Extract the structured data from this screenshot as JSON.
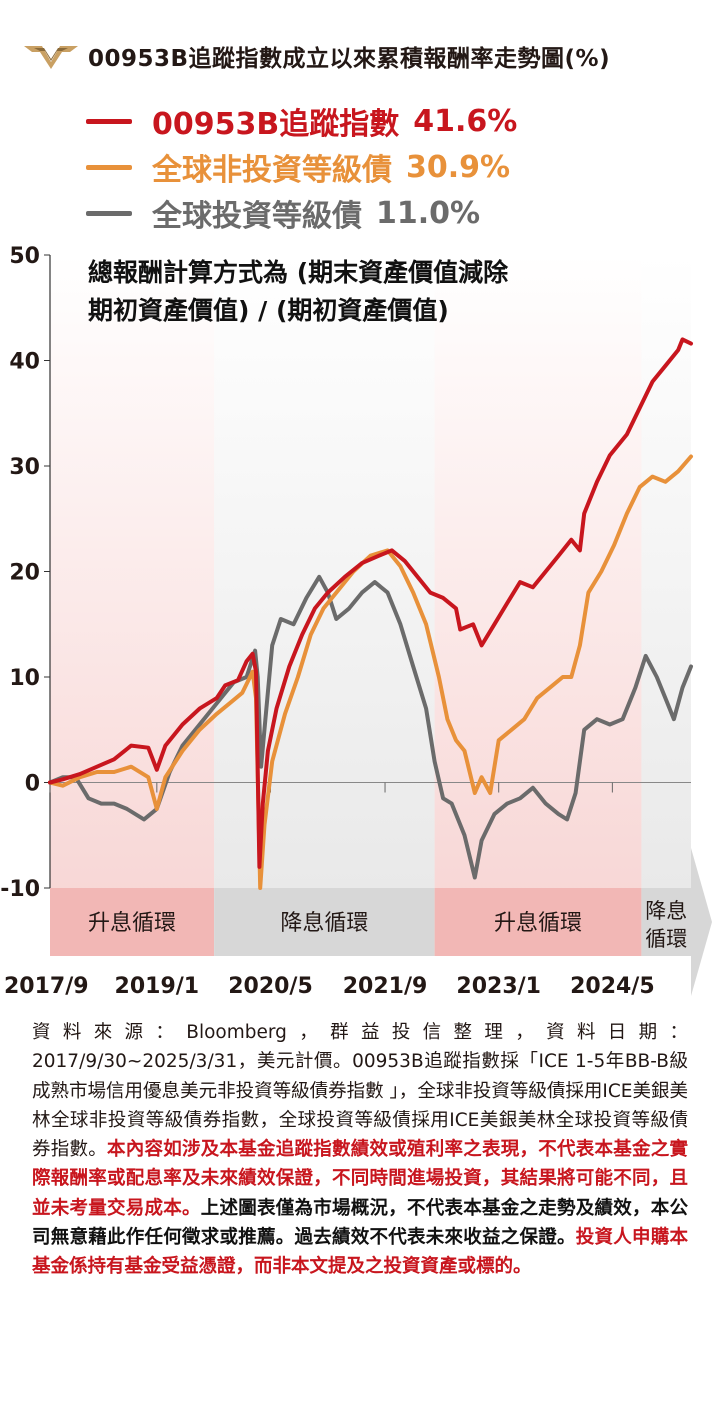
{
  "header": {
    "title": "00953B追蹤指數成立以來累積報酬率走勢圖(%)",
    "logo_colors": [
      "#c9a063",
      "#8a6a3a"
    ]
  },
  "legend": [
    {
      "name": "00953B追蹤指數",
      "value": "41.6%",
      "color": "#c8161e"
    },
    {
      "name": "全球非投資等級債",
      "value": "30.9%",
      "color": "#e8913a"
    },
    {
      "name": "全球投資等級債",
      "value": "11.0%",
      "color": "#6b6b6b"
    }
  ],
  "note": {
    "line1": "總報酬計算方式為 (期末資產價值減除",
    "line2": "期初資產價值) / (期初資產價值)"
  },
  "chart_data": {
    "type": "line",
    "x_range": [
      2017.75,
      2025.25
    ],
    "x_tick_labels": [
      "2017/9",
      "2019/1",
      "2020/5",
      "2021/9",
      "2023/1",
      "2024/5"
    ],
    "x_tick_positions": [
      2017.75,
      2019.0,
      2020.33,
      2021.67,
      2023.0,
      2024.33
    ],
    "y_range": [
      -10,
      50
    ],
    "y_ticks": [
      -10,
      0,
      10,
      20,
      30,
      40,
      50
    ],
    "zero_line": true,
    "regions": [
      {
        "label": "升息循環",
        "from": 2017.75,
        "to": 2019.67,
        "color": "#f2b7b5"
      },
      {
        "label": "降息循環",
        "from": 2019.67,
        "to": 2022.25,
        "color": "#d7d7d7"
      },
      {
        "label": "升息循環",
        "from": 2022.25,
        "to": 2024.67,
        "color": "#f2b7b5"
      },
      {
        "label": "降息循環",
        "from": 2024.67,
        "to": 2025.25,
        "color": "#d7d7d7"
      }
    ],
    "series": [
      {
        "name": "00953B追蹤指數",
        "color": "#c8161e",
        "points": [
          [
            2017.75,
            0
          ],
          [
            2017.9,
            0.3
          ],
          [
            2018.1,
            0.8
          ],
          [
            2018.3,
            1.5
          ],
          [
            2018.5,
            2.2
          ],
          [
            2018.7,
            3.5
          ],
          [
            2018.9,
            3.3
          ],
          [
            2019.0,
            1.2
          ],
          [
            2019.1,
            3.5
          ],
          [
            2019.3,
            5.5
          ],
          [
            2019.5,
            7.0
          ],
          [
            2019.7,
            8.0
          ],
          [
            2019.8,
            9.2
          ],
          [
            2019.95,
            9.7
          ],
          [
            2020.05,
            11.5
          ],
          [
            2020.12,
            12.2
          ],
          [
            2020.16,
            10.5
          ],
          [
            2020.2,
            -8.0
          ],
          [
            2020.24,
            -2.0
          ],
          [
            2020.3,
            3.0
          ],
          [
            2020.4,
            7.0
          ],
          [
            2020.55,
            11.0
          ],
          [
            2020.7,
            14.0
          ],
          [
            2020.85,
            16.5
          ],
          [
            2021.0,
            18.0
          ],
          [
            2021.2,
            19.5
          ],
          [
            2021.4,
            20.8
          ],
          [
            2021.6,
            21.5
          ],
          [
            2021.75,
            22.0
          ],
          [
            2021.9,
            21.0
          ],
          [
            2022.05,
            19.5
          ],
          [
            2022.2,
            18.0
          ],
          [
            2022.35,
            17.5
          ],
          [
            2022.5,
            16.5
          ],
          [
            2022.55,
            14.5
          ],
          [
            2022.7,
            15.0
          ],
          [
            2022.8,
            13.0
          ],
          [
            2022.95,
            15.0
          ],
          [
            2023.1,
            17.0
          ],
          [
            2023.25,
            19.0
          ],
          [
            2023.4,
            18.5
          ],
          [
            2023.55,
            20.0
          ],
          [
            2023.7,
            21.5
          ],
          [
            2023.85,
            23.0
          ],
          [
            2023.95,
            22.0
          ],
          [
            2024.0,
            25.5
          ],
          [
            2024.15,
            28.5
          ],
          [
            2024.3,
            31.0
          ],
          [
            2024.5,
            33.0
          ],
          [
            2024.65,
            35.5
          ],
          [
            2024.8,
            38.0
          ],
          [
            2024.95,
            39.5
          ],
          [
            2025.1,
            41.0
          ],
          [
            2025.15,
            42.0
          ],
          [
            2025.25,
            41.6
          ]
        ]
      },
      {
        "name": "全球非投資等級債",
        "color": "#e8913a",
        "points": [
          [
            2017.75,
            0
          ],
          [
            2017.9,
            -0.3
          ],
          [
            2018.1,
            0.5
          ],
          [
            2018.3,
            1.0
          ],
          [
            2018.5,
            1.0
          ],
          [
            2018.7,
            1.5
          ],
          [
            2018.9,
            0.5
          ],
          [
            2019.0,
            -2.5
          ],
          [
            2019.1,
            0.5
          ],
          [
            2019.3,
            3.0
          ],
          [
            2019.5,
            5.0
          ],
          [
            2019.7,
            6.5
          ],
          [
            2019.85,
            7.5
          ],
          [
            2020.0,
            8.5
          ],
          [
            2020.12,
            10.5
          ],
          [
            2020.16,
            8.0
          ],
          [
            2020.21,
            -10.0
          ],
          [
            2020.26,
            -4.0
          ],
          [
            2020.35,
            2.0
          ],
          [
            2020.5,
            6.5
          ],
          [
            2020.65,
            10.0
          ],
          [
            2020.8,
            14.0
          ],
          [
            2020.95,
            16.5
          ],
          [
            2021.1,
            18.0
          ],
          [
            2021.3,
            20.0
          ],
          [
            2021.5,
            21.5
          ],
          [
            2021.7,
            22.0
          ],
          [
            2021.85,
            20.5
          ],
          [
            2022.0,
            18.0
          ],
          [
            2022.15,
            15.0
          ],
          [
            2022.3,
            10.0
          ],
          [
            2022.4,
            6.0
          ],
          [
            2022.5,
            4.0
          ],
          [
            2022.6,
            3.0
          ],
          [
            2022.72,
            -1.0
          ],
          [
            2022.8,
            0.5
          ],
          [
            2022.9,
            -1.0
          ],
          [
            2023.0,
            4.0
          ],
          [
            2023.15,
            5.0
          ],
          [
            2023.3,
            6.0
          ],
          [
            2023.45,
            8.0
          ],
          [
            2023.6,
            9.0
          ],
          [
            2023.75,
            10.0
          ],
          [
            2023.85,
            10.0
          ],
          [
            2023.95,
            13.0
          ],
          [
            2024.05,
            18.0
          ],
          [
            2024.2,
            20.0
          ],
          [
            2024.35,
            22.5
          ],
          [
            2024.5,
            25.5
          ],
          [
            2024.65,
            28.0
          ],
          [
            2024.8,
            29.0
          ],
          [
            2024.95,
            28.5
          ],
          [
            2025.1,
            29.5
          ],
          [
            2025.25,
            30.9
          ]
        ]
      },
      {
        "name": "全球投資等級債",
        "color": "#6b6b6b",
        "points": [
          [
            2017.75,
            0
          ],
          [
            2017.9,
            0.5
          ],
          [
            2018.05,
            0.5
          ],
          [
            2018.2,
            -1.5
          ],
          [
            2018.35,
            -2.0
          ],
          [
            2018.5,
            -2.0
          ],
          [
            2018.65,
            -2.5
          ],
          [
            2018.85,
            -3.5
          ],
          [
            2019.0,
            -2.5
          ],
          [
            2019.15,
            1.0
          ],
          [
            2019.3,
            3.5
          ],
          [
            2019.5,
            5.5
          ],
          [
            2019.7,
            7.5
          ],
          [
            2019.9,
            9.5
          ],
          [
            2020.05,
            10.0
          ],
          [
            2020.15,
            12.5
          ],
          [
            2020.18,
            10.0
          ],
          [
            2020.22,
            1.5
          ],
          [
            2020.27,
            6.0
          ],
          [
            2020.35,
            13.0
          ],
          [
            2020.45,
            15.5
          ],
          [
            2020.6,
            15.0
          ],
          [
            2020.75,
            17.5
          ],
          [
            2020.9,
            19.5
          ],
          [
            2021.0,
            18.0
          ],
          [
            2021.1,
            15.5
          ],
          [
            2021.25,
            16.5
          ],
          [
            2021.4,
            18.0
          ],
          [
            2021.55,
            19.0
          ],
          [
            2021.7,
            18.0
          ],
          [
            2021.85,
            15.0
          ],
          [
            2022.0,
            11.0
          ],
          [
            2022.15,
            7.0
          ],
          [
            2022.25,
            2.0
          ],
          [
            2022.35,
            -1.5
          ],
          [
            2022.45,
            -2.0
          ],
          [
            2022.6,
            -5.0
          ],
          [
            2022.72,
            -9.0
          ],
          [
            2022.8,
            -5.5
          ],
          [
            2022.95,
            -3.0
          ],
          [
            2023.1,
            -2.0
          ],
          [
            2023.25,
            -1.5
          ],
          [
            2023.4,
            -0.5
          ],
          [
            2023.55,
            -2.0
          ],
          [
            2023.7,
            -3.0
          ],
          [
            2023.8,
            -3.5
          ],
          [
            2023.9,
            -1.0
          ],
          [
            2024.0,
            5.0
          ],
          [
            2024.15,
            6.0
          ],
          [
            2024.3,
            5.5
          ],
          [
            2024.45,
            6.0
          ],
          [
            2024.6,
            9.0
          ],
          [
            2024.72,
            12.0
          ],
          [
            2024.85,
            10.0
          ],
          [
            2024.95,
            8.0
          ],
          [
            2025.05,
            6.0
          ],
          [
            2025.15,
            9.0
          ],
          [
            2025.25,
            11.0
          ]
        ]
      }
    ]
  },
  "footer": {
    "p1": "資料來源：Bloomberg，群益投信整理，資料日期：2017/9/30~2025/3/31，美元計價。00953B追蹤指數採「ICE 1-5年BB-B級成熟市場信用優息美元非投資等級債券指數 」，全球非投資等級債採用ICE美銀美林全球非投資等級債券指數，全球投資等級債採用ICE美銀美林全球投資等級債券指數。",
    "p2": "本內容如涉及本基金追蹤指數績效或殖利率之表現，不代表本基金之實際報酬率或配息率及未來績效保證，不同時間進場投資，其結果將可能不同，且並未考量交易成本。",
    "p3": "上述圖表僅為市場概況，不代表本基金之走勢及績效，本公司無意藉此作任何徵求或推薦。過去績效不代表未來收益之保證。",
    "p4": "投資人申購本基金係持有基金受益憑證，而非本文提及之投資資產或標的。"
  }
}
